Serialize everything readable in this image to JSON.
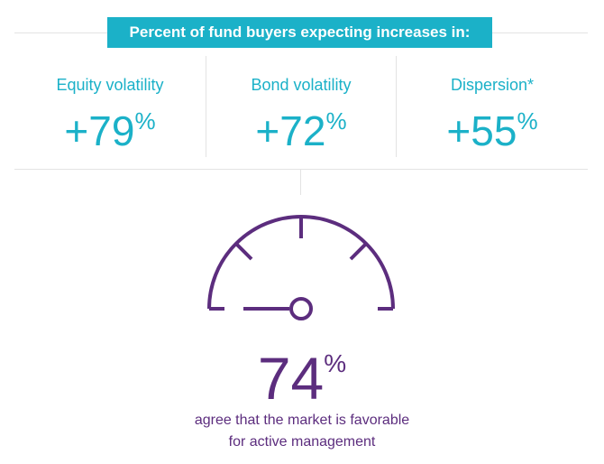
{
  "header": {
    "title": "Percent of fund buyers expecting increases in:"
  },
  "stats": [
    {
      "label": "Equity volatility",
      "value": "+79",
      "unit": "%"
    },
    {
      "label": "Bond volatility",
      "value": "+72",
      "unit": "%"
    },
    {
      "label": "Dispersion*",
      "value": "+55",
      "unit": "%"
    }
  ],
  "gauge": {
    "value": "74",
    "unit": "%",
    "caption_line1": "agree that the market is favorable",
    "caption_line2": "for active management",
    "icon": "gauge-icon"
  },
  "colors": {
    "teal": "#1bb1c8",
    "purple": "#5c2d7e",
    "rule": "#e3e3e3"
  }
}
